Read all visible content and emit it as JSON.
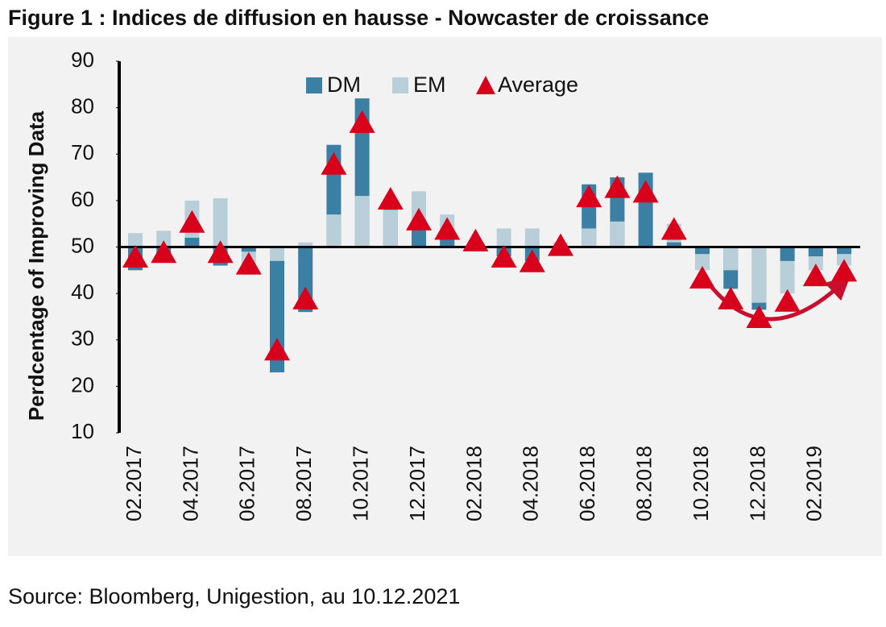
{
  "chart_data": {
    "type": "bar",
    "title": "Figure 1 : Indices de diffusion en hausse - Nowcaster de croissance",
    "y_label": "Perdcentage of Improving Data",
    "source": "Source: Bloomberg, Unigestion, au 10.12.2021",
    "categories": [
      "02.2017",
      null,
      "04.2017",
      null,
      "06.2017",
      null,
      "08.2017",
      null,
      "10.2017",
      null,
      "12.2017",
      null,
      "02.2018",
      null,
      "04.2018",
      null,
      "06.2018",
      null,
      "08.2018",
      null,
      "10.2018",
      null,
      "12.2018",
      null,
      "02.2019",
      null
    ],
    "baseline": 50,
    "series": [
      {
        "name": "DM",
        "color": "#3b7fa4",
        "kind": "bar",
        "values": [
          45,
          47,
          52,
          46,
          49,
          23,
          36,
          72,
          82,
          60,
          54,
          52,
          51,
          48,
          47,
          50,
          63.5,
          65,
          66,
          51,
          48.5,
          41,
          36.5,
          47,
          48,
          48.5
        ]
      },
      {
        "name": "EM",
        "color": "#b8cfda",
        "kind": "bar",
        "values": [
          53,
          53.5,
          60,
          60.5,
          44,
          47,
          51,
          57,
          61,
          58,
          62,
          57,
          50.5,
          54,
          54,
          51,
          54,
          55.5,
          50,
          55,
          45,
          45,
          38,
          40,
          45,
          46
        ]
      },
      {
        "name": "Average",
        "color": "#d9001b",
        "kind": "triangle",
        "values": [
          48,
          49,
          55.5,
          49,
          46.5,
          28,
          39,
          68,
          77,
          60.5,
          56,
          54,
          51.5,
          48,
          47,
          50.5,
          61,
          63,
          62,
          54,
          43.5,
          39,
          35,
          38.5,
          44,
          45
        ]
      }
    ],
    "ylim": [
      10,
      90
    ],
    "yticks": [
      10,
      20,
      30,
      40,
      50,
      60,
      70,
      80,
      90
    ],
    "legend": "top"
  }
}
